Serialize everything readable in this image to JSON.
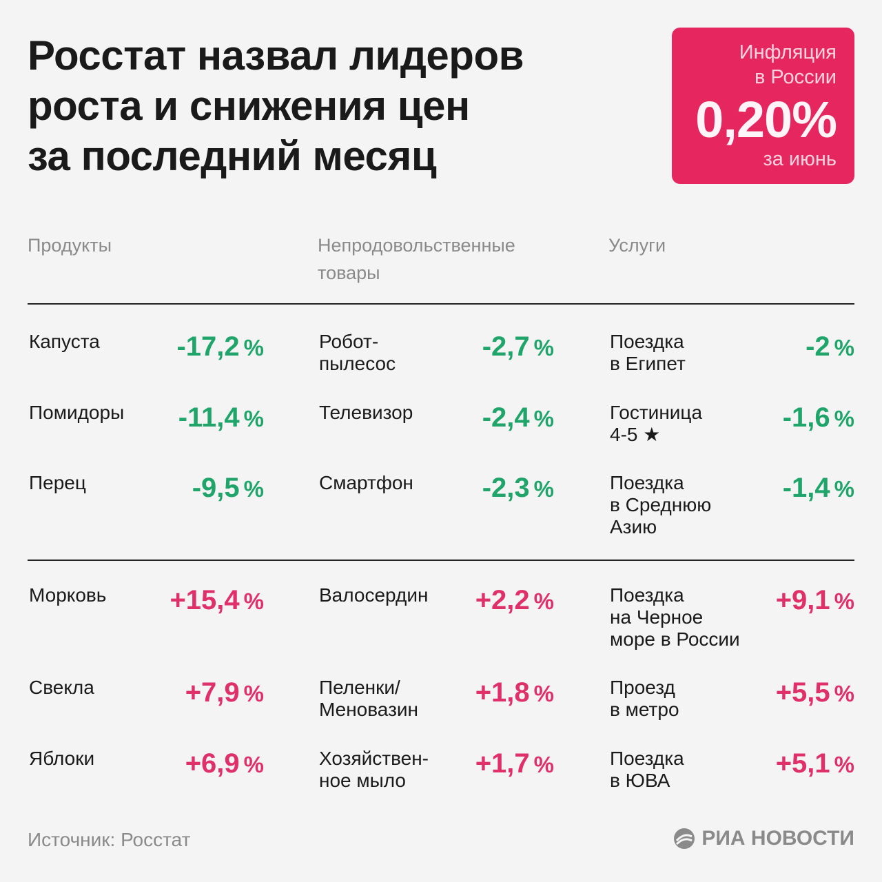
{
  "title": [
    "Росстат назвал лидеров",
    "роста и снижения цен",
    "за последний месяц"
  ],
  "badge": {
    "label_line1": "Инфляция",
    "label_line2": "в России",
    "value": "0,20%",
    "period": "за июнь",
    "color": "#e6275f"
  },
  "columns": {
    "products": "Продукты",
    "nonfood_line1": "Непродовольственные",
    "nonfood_line2": "товары",
    "services": "Услуги"
  },
  "decline": {
    "products": [
      {
        "name": [
          "Капуста"
        ],
        "value": "-17,2",
        "unit": "%"
      },
      {
        "name": [
          "Помидоры"
        ],
        "value": "-11,4",
        "unit": "%"
      },
      {
        "name": [
          "Перец"
        ],
        "value": "-9,5",
        "unit": "%"
      }
    ],
    "nonfood": [
      {
        "name": [
          "Робот-",
          "пылесос"
        ],
        "value": "-2,7",
        "unit": "%"
      },
      {
        "name": [
          "Телевизор"
        ],
        "value": "-2,4",
        "unit": "%"
      },
      {
        "name": [
          "Смартфон"
        ],
        "value": "-2,3",
        "unit": "%"
      }
    ],
    "services": [
      {
        "name": [
          "Поездка",
          "в Египет"
        ],
        "value": "-2",
        "unit": "%"
      },
      {
        "name": [
          "Гостиница",
          "4-5 ★"
        ],
        "value": "-1,6",
        "unit": "%"
      },
      {
        "name": [
          "Поездка",
          "в Среднюю",
          "Азию"
        ],
        "value": "-1,4",
        "unit": "%"
      }
    ]
  },
  "growth": {
    "products": [
      {
        "name": [
          "Морковь"
        ],
        "value": "+15,4",
        "unit": "%"
      },
      {
        "name": [
          "Свекла"
        ],
        "value": "+7,9",
        "unit": "%"
      },
      {
        "name": [
          "Яблоки"
        ],
        "value": "+6,9",
        "unit": "%"
      }
    ],
    "nonfood": [
      {
        "name": [
          "Валосердин"
        ],
        "value": "+2,2",
        "unit": "%"
      },
      {
        "name": [
          "Пеленки/",
          "Меновазин"
        ],
        "value": "+1,8",
        "unit": "%"
      },
      {
        "name": [
          "Хозяйствен-",
          "ное мыло"
        ],
        "value": "+1,7",
        "unit": "%"
      }
    ],
    "services": [
      {
        "name": [
          "Поездка",
          "на Черное",
          "море в России"
        ],
        "value": "+9,1",
        "unit": "%"
      },
      {
        "name": [
          "Проезд",
          "в метро"
        ],
        "value": "+5,5",
        "unit": "%"
      },
      {
        "name": [
          "Поездка",
          "в ЮВА"
        ],
        "value": "+5,1",
        "unit": "%"
      }
    ]
  },
  "colors": {
    "decline": "#1fa56a",
    "growth": "#e0306a"
  },
  "footer": {
    "source": "Источник: Росстат",
    "logo_text": "РИА НОВОСТИ",
    "logo_icon": "ria-logo-icon"
  }
}
